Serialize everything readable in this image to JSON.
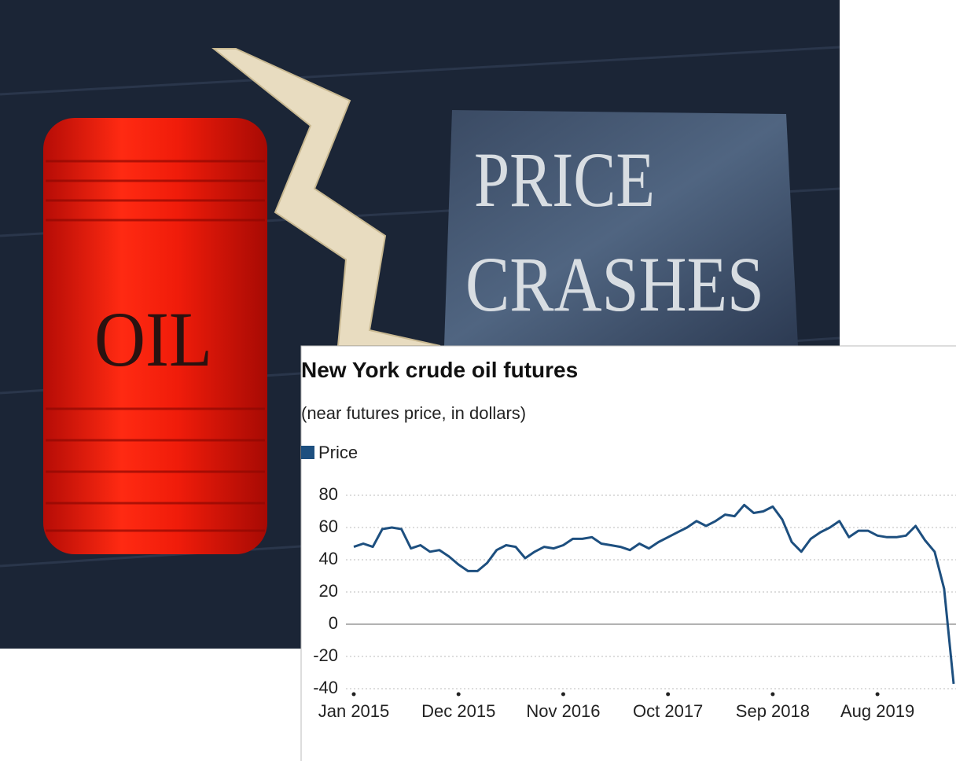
{
  "photo": {
    "sign": [
      "PRICE",
      "CRASHES"
    ],
    "barrel_label": "OIL"
  },
  "chart_data": {
    "type": "line",
    "title": "New York crude oil futures",
    "subtitle": "(near futures price, in dollars)",
    "categories": [
      "Jan 2015",
      null,
      null,
      null,
      null,
      null,
      null,
      null,
      null,
      null,
      null,
      "Dec 2015",
      null,
      null,
      null,
      null,
      null,
      null,
      null,
      null,
      null,
      null,
      "Nov 2016",
      null,
      null,
      null,
      null,
      null,
      null,
      null,
      null,
      null,
      null,
      "Oct 2017",
      null,
      null,
      null,
      null,
      null,
      null,
      null,
      null,
      null,
      null,
      "Sep 2018",
      null,
      null,
      null,
      null,
      null,
      null,
      null,
      null,
      null,
      null,
      "Aug 2019",
      null,
      null,
      null,
      null,
      null,
      null,
      null,
      null
    ],
    "series": [
      {
        "name": "Price",
        "color": "#1d4f7f",
        "values": [
          48,
          50,
          48,
          59,
          60,
          59,
          47,
          49,
          45,
          46,
          42,
          37,
          33,
          33,
          38,
          46,
          49,
          48,
          41,
          45,
          48,
          47,
          49,
          53,
          53,
          54,
          50,
          49,
          48,
          46,
          50,
          47,
          51,
          54,
          57,
          60,
          64,
          61,
          64,
          68,
          67,
          74,
          69,
          70,
          73,
          65,
          51,
          45,
          53,
          57,
          60,
          64,
          54,
          58,
          58,
          55,
          54,
          54,
          55,
          61,
          52,
          45,
          22,
          -37
        ]
      }
    ],
    "ylim": [
      -40,
      80
    ],
    "yticks": [
      -40,
      -20,
      0,
      20,
      40,
      60,
      80
    ],
    "grid": true
  }
}
